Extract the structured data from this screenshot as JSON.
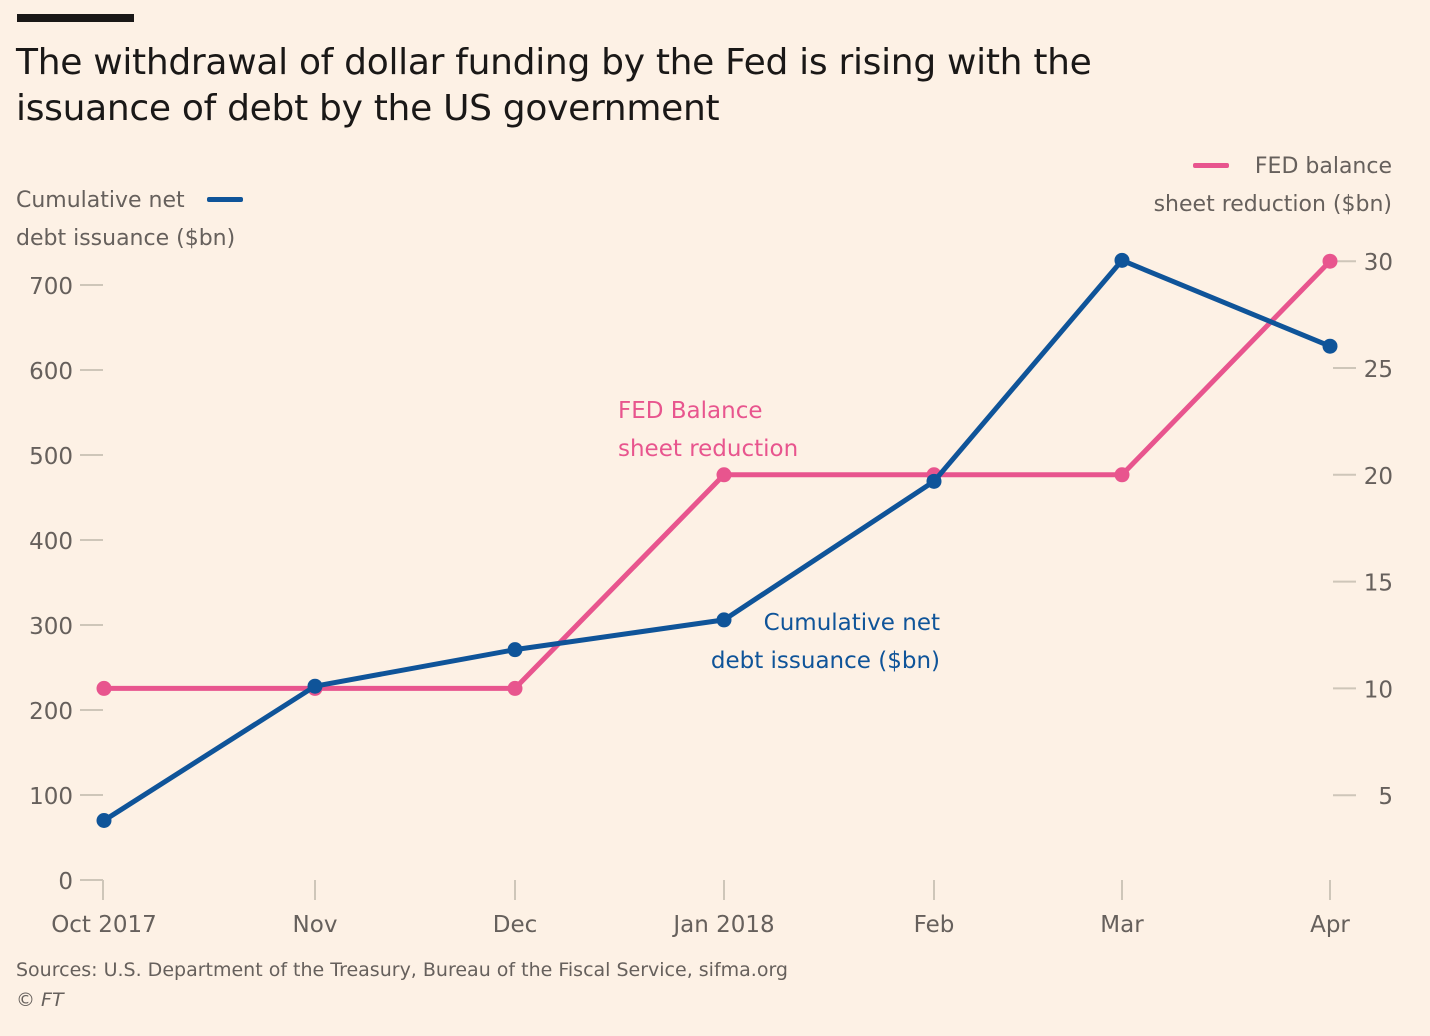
{
  "title_line1": "The withdrawal of dollar funding by the Fed is rising with the",
  "title_line2": "issuance of debt by the US government",
  "left_axis_title_line1": "Cumulative net",
  "left_axis_title_line2": "debt issuance ($bn)",
  "right_axis_title_line1": "FED balance",
  "right_axis_title_line2": "sheet reduction ($bn)",
  "annotations": {
    "fed_line1": "FED Balance",
    "fed_line2": "sheet reduction",
    "debt_line1": "Cumulative net",
    "debt_line2": "debt issuance ($bn)"
  },
  "source": "Sources: U.S. Department of the Treasury, Bureau of the Fiscal Service, sifma.org",
  "copyright": "© FT",
  "colors": {
    "background": "#fdf1e5",
    "debt_series": "#0f5499",
    "fed_series": "#e8558e",
    "axis_text": "#66605c",
    "tick": "#cec6b9"
  },
  "chart_data": {
    "type": "line",
    "title": "The withdrawal of dollar funding by the Fed is rising with the issuance of debt by the US government",
    "categories": [
      "Oct 2017",
      "Nov",
      "Dec",
      "Jan 2018",
      "Feb",
      "Mar",
      "Apr"
    ],
    "series": [
      {
        "name": "Cumulative net debt issuance ($bn)",
        "axis": "left",
        "color": "#0f5499",
        "values": [
          70,
          228,
          271,
          306,
          469,
          729,
          628
        ]
      },
      {
        "name": "FED balance sheet reduction ($bn)",
        "axis": "right",
        "color": "#e8558e",
        "values": [
          10,
          10,
          10,
          20,
          20,
          20,
          30
        ]
      }
    ],
    "left_axis": {
      "label": "Cumulative net debt issuance ($bn)",
      "ticks": [
        0,
        100,
        200,
        300,
        400,
        500,
        600,
        700
      ],
      "range": [
        0,
        700
      ]
    },
    "right_axis": {
      "label": "FED balance sheet reduction ($bn)",
      "ticks": [
        5,
        10,
        15,
        20,
        25,
        30
      ],
      "range": [
        0,
        30
      ]
    },
    "xlabel": "",
    "grid": false,
    "legend": [
      "top-left",
      "top-right"
    ]
  }
}
